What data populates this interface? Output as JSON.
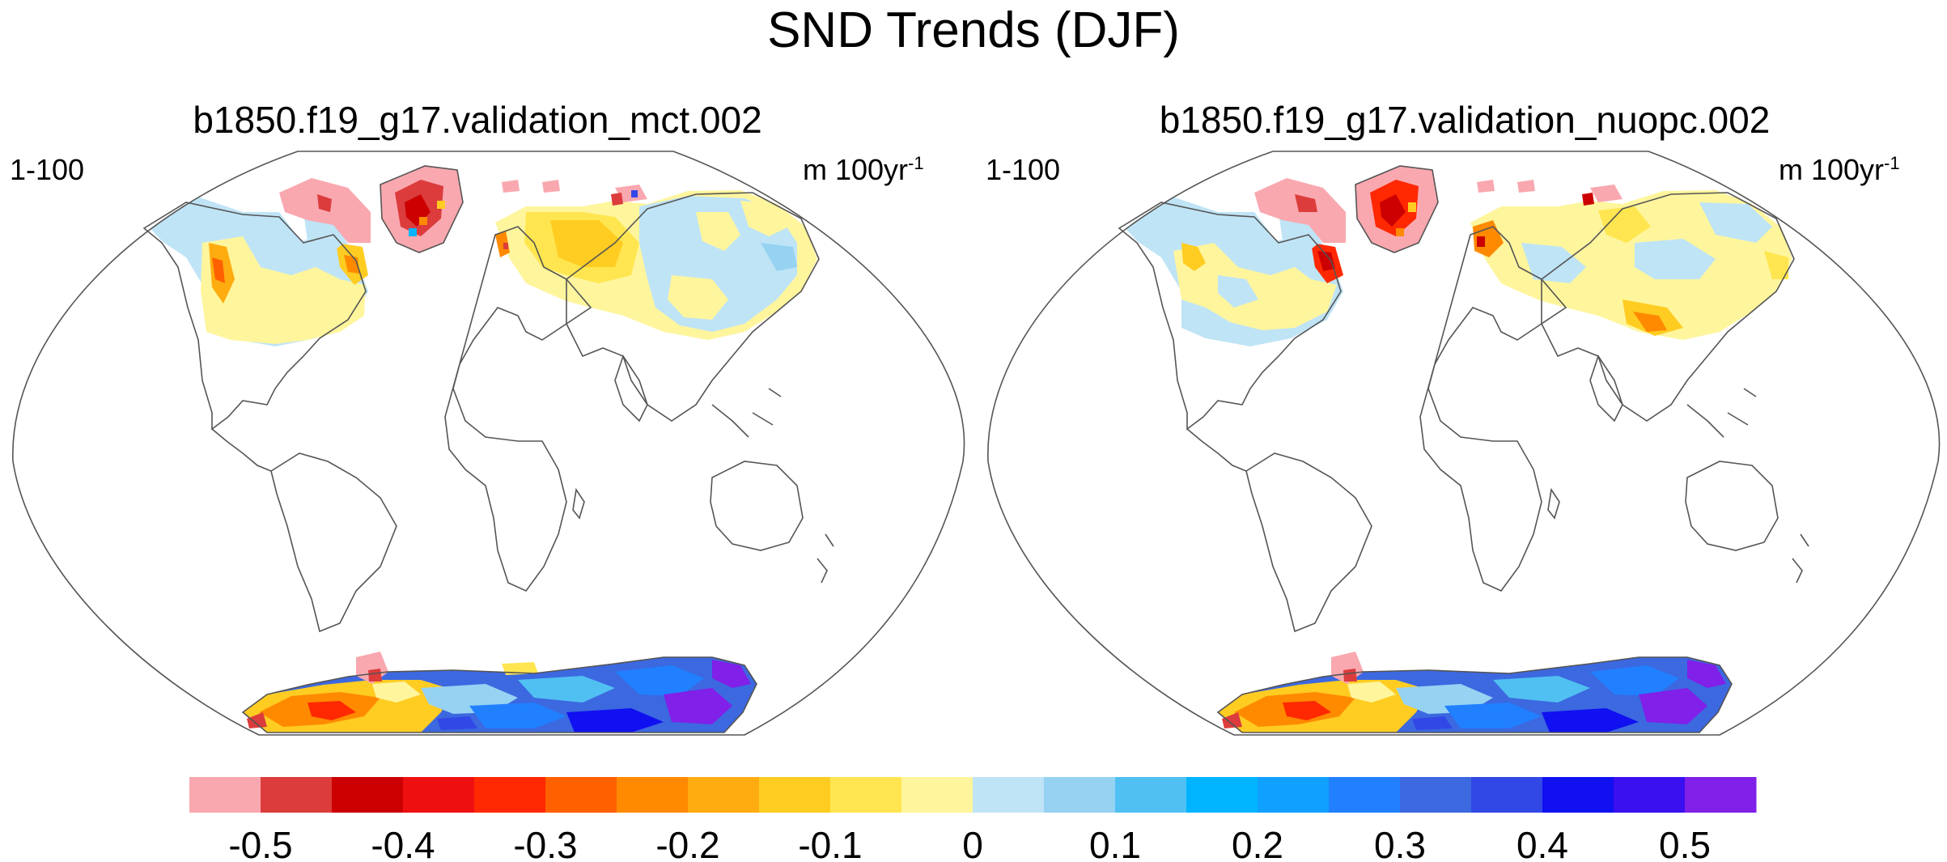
{
  "title": "SND Trends (DJF)",
  "panels": [
    {
      "title": "b1850.f19_g17.validation_mct.002",
      "left_label": "1-100",
      "units": "m 100yr",
      "units_exp": "-1"
    },
    {
      "title": "b1850.f19_g17.validation_nuopc.002",
      "left_label": "1-100",
      "units": "m 100yr",
      "units_exp": "-1"
    }
  ],
  "colorbar": {
    "colors": [
      "#f9a8b0",
      "#dc3c3c",
      "#cc0000",
      "#ee1010",
      "#ff2800",
      "#ff6000",
      "#ff8a00",
      "#ffac10",
      "#ffcc22",
      "#ffe650",
      "#fff59d",
      "#bfe4f6",
      "#96d2f2",
      "#50c0f2",
      "#00b4ff",
      "#10a0ff",
      "#2080ff",
      "#3c68e0",
      "#3248e6",
      "#1010f0",
      "#3a10f0",
      "#8020e8"
    ],
    "labels": [
      "-0.5",
      "-0.4",
      "-0.3",
      "-0.2",
      "-0.1",
      "0",
      "0.1",
      "0.2",
      "0.3",
      "0.4",
      "0.5"
    ]
  }
}
